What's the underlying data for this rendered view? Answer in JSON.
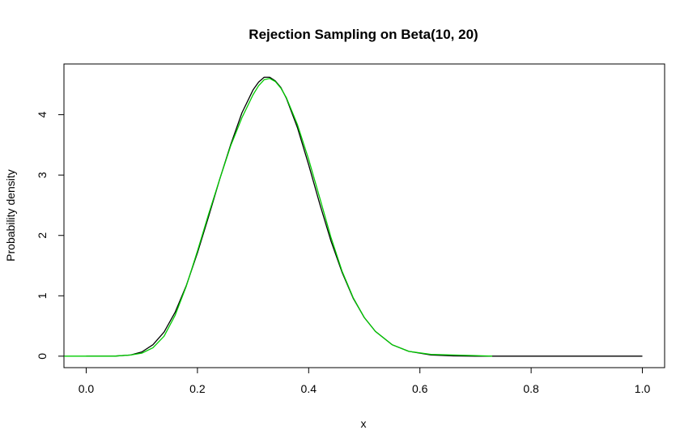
{
  "chart_data": {
    "type": "line",
    "title": "Rejection Sampling on Beta(10, 20)",
    "xlabel": "x",
    "ylabel": "Probability density",
    "xlim": [
      -0.04,
      1.04
    ],
    "ylim": [
      -0.19,
      4.84
    ],
    "x_ticks": [
      0.0,
      0.2,
      0.4,
      0.6,
      0.8,
      1.0
    ],
    "x_tick_labels": [
      "0.0",
      "0.2",
      "0.4",
      "0.6",
      "0.8",
      "1.0"
    ],
    "y_ticks": [
      0,
      1,
      2,
      3,
      4
    ],
    "y_tick_labels": [
      "0",
      "1",
      "2",
      "3",
      "4"
    ],
    "grid": false,
    "legend": "none",
    "series": [
      {
        "color": "#000000",
        "x": [
          0.0,
          0.05,
          0.08,
          0.1,
          0.12,
          0.14,
          0.16,
          0.18,
          0.2,
          0.22,
          0.24,
          0.26,
          0.28,
          0.3,
          0.31,
          0.32,
          0.33,
          0.34,
          0.35,
          0.36,
          0.38,
          0.4,
          0.42,
          0.44,
          0.46,
          0.48,
          0.5,
          0.52,
          0.55,
          0.58,
          0.62,
          0.66,
          0.7,
          0.75,
          0.8,
          0.9,
          1.0
        ],
        "y": [
          0.0,
          0.0,
          0.02,
          0.07,
          0.19,
          0.4,
          0.73,
          1.17,
          1.71,
          2.31,
          2.93,
          3.51,
          4.03,
          4.41,
          4.54,
          4.62,
          4.62,
          4.56,
          4.45,
          4.27,
          3.78,
          3.17,
          2.52,
          1.91,
          1.39,
          0.96,
          0.64,
          0.41,
          0.19,
          0.08,
          0.02,
          0.005,
          0.0,
          0.0,
          0.0,
          0.0,
          0.0
        ]
      },
      {
        "color": "#00cc00",
        "x": [
          -0.04,
          0.0,
          0.05,
          0.08,
          0.1,
          0.12,
          0.14,
          0.16,
          0.18,
          0.2,
          0.22,
          0.24,
          0.26,
          0.28,
          0.3,
          0.31,
          0.32,
          0.33,
          0.34,
          0.35,
          0.36,
          0.38,
          0.4,
          0.42,
          0.44,
          0.46,
          0.48,
          0.5,
          0.52,
          0.55,
          0.58,
          0.62,
          0.66,
          0.7,
          0.73
        ],
        "y": [
          0.0,
          0.0,
          0.0,
          0.02,
          0.05,
          0.14,
          0.33,
          0.68,
          1.16,
          1.74,
          2.35,
          2.93,
          3.49,
          3.95,
          4.33,
          4.48,
          4.58,
          4.6,
          4.55,
          4.44,
          4.28,
          3.83,
          3.26,
          2.62,
          1.97,
          1.41,
          0.97,
          0.64,
          0.41,
          0.19,
          0.08,
          0.03,
          0.02,
          0.01,
          0.0
        ]
      }
    ]
  }
}
